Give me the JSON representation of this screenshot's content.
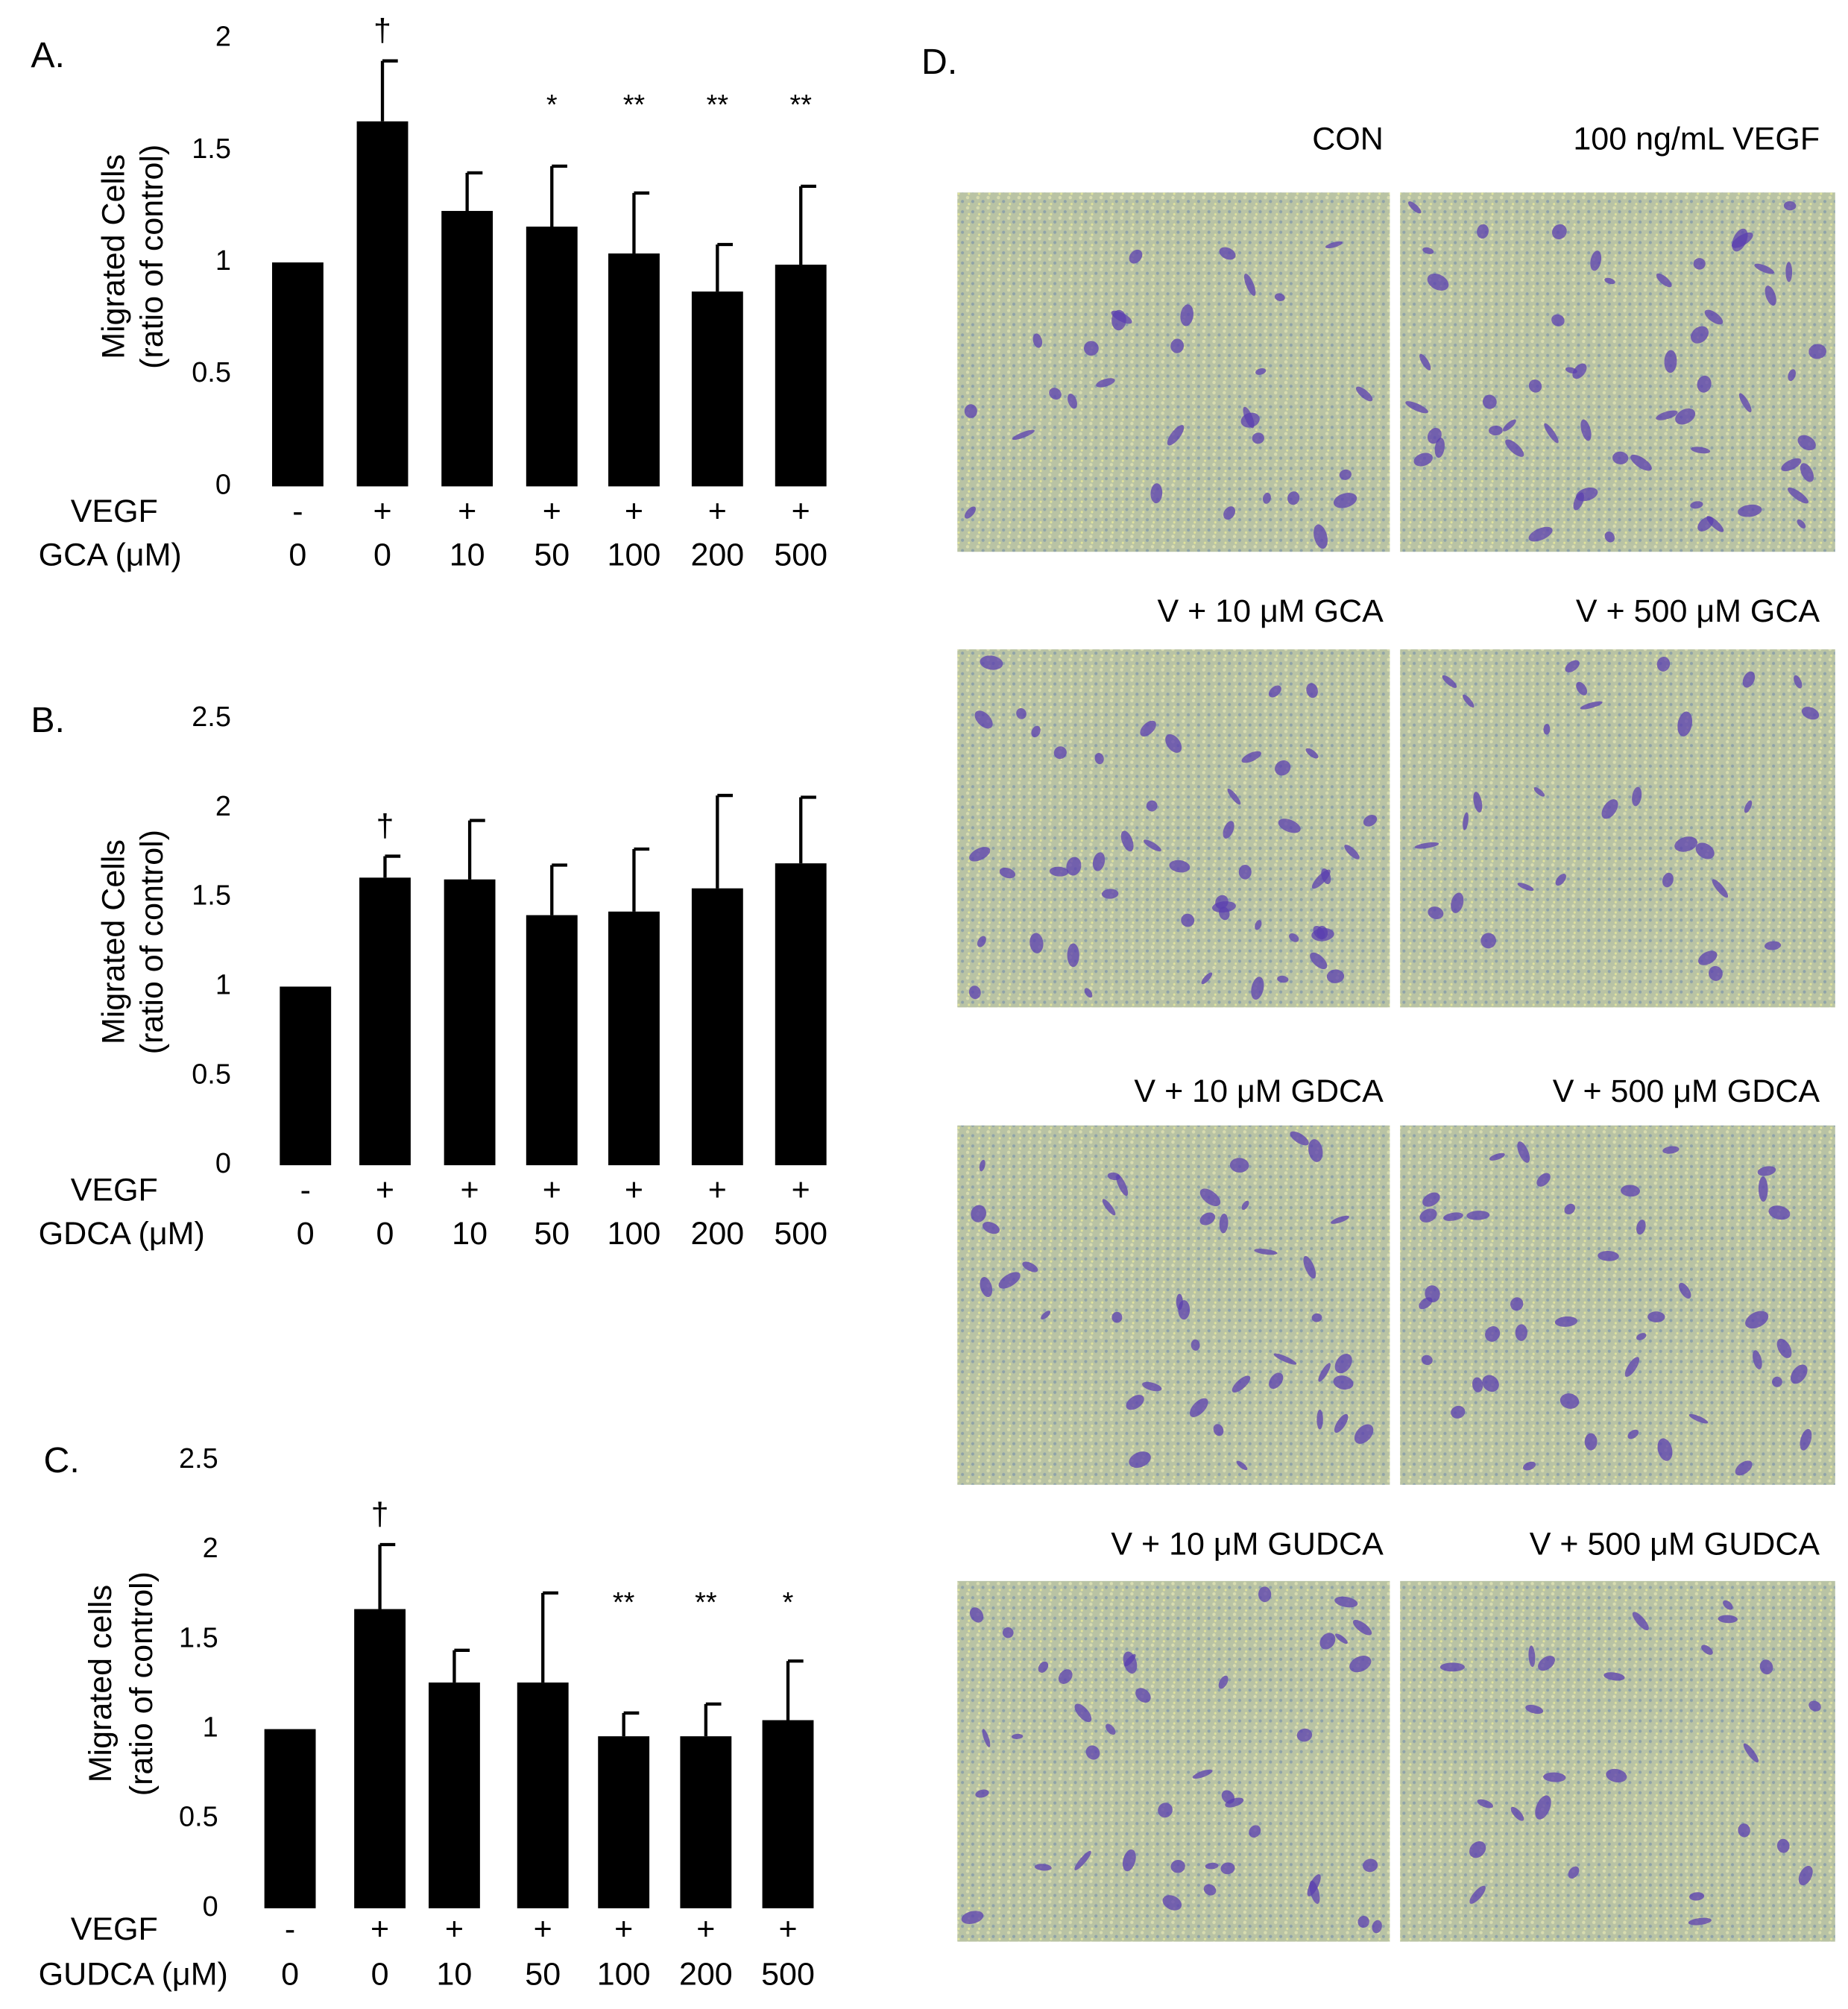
{
  "chart_data": [
    {
      "type": "bar",
      "panel_label": "A.",
      "ylabel": [
        "Migrated Cells",
        "(ratio of control)"
      ],
      "ylim": [
        0,
        2
      ],
      "yticks": [
        0,
        0.5,
        1,
        1.5,
        2
      ],
      "color": "#000000",
      "vegf_label": "VEGF",
      "vegf": [
        "-",
        "+",
        "+",
        "+",
        "+",
        "+",
        "+"
      ],
      "xlabel": "GCA (μM)",
      "categories": [
        "0",
        "0",
        "10",
        "50",
        "100",
        "200",
        "500"
      ],
      "values": [
        1,
        1.63,
        1.23,
        1.16,
        1.04,
        0.87,
        0.99
      ],
      "errors": [
        null,
        0.27,
        0.17,
        0.27,
        0.27,
        0.21,
        0.35
      ],
      "significance": [
        null,
        "†",
        null,
        "*",
        "**",
        "**",
        "**"
      ]
    },
    {
      "type": "bar",
      "panel_label": "B.",
      "ylabel": [
        "Migrated Cells",
        "(ratio of control)"
      ],
      "ylim": [
        0,
        2.5
      ],
      "yticks": [
        0,
        0.5,
        1,
        1.5,
        2,
        2.5
      ],
      "color": "#000000",
      "vegf_label": "VEGF",
      "vegf": [
        "-",
        "+",
        "+",
        "+",
        "+",
        "+",
        "+"
      ],
      "xlabel": "GDCA (μM)",
      "categories": [
        "0",
        "0",
        "10",
        "50",
        "100",
        "200",
        "500"
      ],
      "values": [
        1,
        1.61,
        1.6,
        1.4,
        1.42,
        1.55,
        1.69
      ],
      "errors": [
        null,
        0.12,
        0.33,
        0.28,
        0.35,
        0.52,
        0.37
      ],
      "significance": [
        null,
        "†",
        null,
        null,
        null,
        null,
        null
      ]
    },
    {
      "type": "bar",
      "panel_label": "C.",
      "ylabel": [
        "Migrated cells",
        "(ratio of control)"
      ],
      "ylim": [
        0,
        2.5
      ],
      "yticks": [
        0,
        0.5,
        1,
        1.5,
        2,
        2.5
      ],
      "color": "#000000",
      "vegf_label": "VEGF",
      "vegf": [
        "-",
        "+",
        "+",
        "+",
        "+",
        "+",
        "+"
      ],
      "xlabel": "GUDCA (μM)",
      "categories": [
        "0",
        "0",
        "10",
        "50",
        "100",
        "200",
        "500"
      ],
      "values": [
        1,
        1.67,
        1.26,
        1.26,
        0.96,
        0.96,
        1.05
      ],
      "errors": [
        null,
        0.36,
        0.18,
        0.5,
        0.13,
        0.18,
        0.33
      ],
      "significance": [
        null,
        "†",
        null,
        null,
        "**",
        "**",
        "*"
      ]
    }
  ],
  "panel_d": {
    "label": "D.",
    "images": [
      "CON",
      "100 ng/mL VEGF",
      "V + 10 μM GCA",
      "V + 500 μM GCA",
      "V + 10 μM GDCA",
      "V + 500 μM GDCA",
      "V + 10 μM GUDCA",
      "V + 500 μM GUDCA"
    ]
  }
}
